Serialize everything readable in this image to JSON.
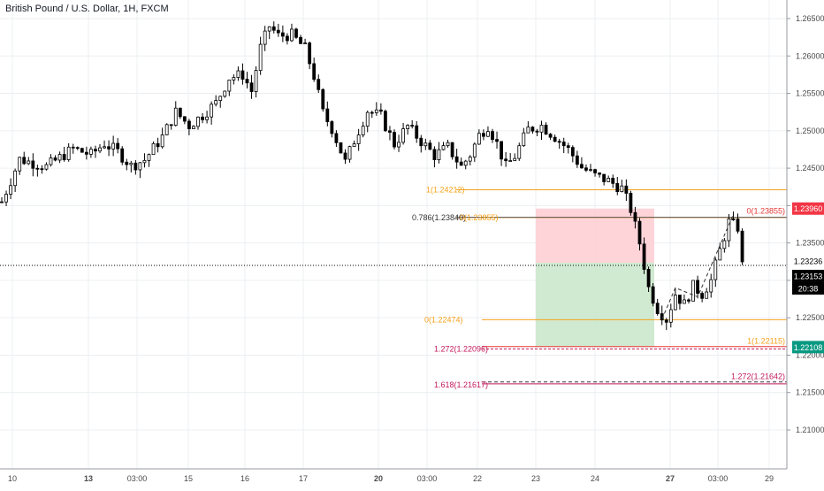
{
  "symbol": {
    "title": "British Pound / U.S. Dollar, 1H, FXCM"
  },
  "colors": {
    "up": "#26a69a",
    "down": "#000000",
    "candle": "#000000",
    "fib_orange": "#f7a21b",
    "fib_red": "#c2185b",
    "target_red": "#e53935",
    "stop_zone": "#ffcdd2",
    "profit_zone": "#c8e6c9",
    "price_badge": "#000000",
    "stop_badge": "#f23645",
    "target_badge": "#089981",
    "grid": "#eceff2",
    "axis_text": "#4a4a4a"
  },
  "axes": {
    "y_ticks": [
      "1.26500",
      "1.26000",
      "1.25500",
      "1.25000",
      "1.24500",
      "1.24000",
      "1.23500",
      "1.23000",
      "1.22500",
      "1.22000",
      "1.21500",
      "1.21000"
    ],
    "x_ticks": [
      "10",
      "13",
      "03:00",
      "15",
      "16",
      "17",
      "20",
      "03:00",
      "22",
      "23",
      "24",
      "27",
      "03:00",
      "29"
    ]
  },
  "badges": {
    "stop": "1.23960",
    "price_a": "1.23236",
    "price_b": "1.23153",
    "countdown": "20:38",
    "target": "1.22108"
  },
  "fib_labels": {
    "top_1": "1(1.24212)",
    "level_0786": "0.786(1.23840)",
    "level_0786_b": "0(1.23855)",
    "level_0_left": "0(1.22474)",
    "level_0_right": "0(1.23855)",
    "level_1_right": "1(1.22115)",
    "level_1272_left": "1.272(1.22096)",
    "level_1618_left": "1.618(1.21617)",
    "level_1272_right": "1.272(1.21642)"
  },
  "chart_data": {
    "type": "candlestick",
    "title": "British Pound / U.S. Dollar, 1H, FXCM",
    "ylim": [
      1.2035,
      1.2695
    ],
    "y_axis_position": "right",
    "grid": true,
    "current_price": 1.23153,
    "close_path": [
      [
        0,
        1.2405
      ],
      [
        4,
        1.2462
      ],
      [
        10,
        1.2452
      ],
      [
        16,
        1.2476
      ],
      [
        20,
        1.2468
      ],
      [
        23,
        1.2483
      ],
      [
        26,
        1.2472
      ],
      [
        29,
        1.2453
      ],
      [
        32,
        1.2461
      ],
      [
        36,
        1.2492
      ],
      [
        39,
        1.2525
      ],
      [
        42,
        1.2507
      ],
      [
        45,
        1.2521
      ],
      [
        48,
        1.2537
      ],
      [
        51,
        1.2571
      ],
      [
        54,
        1.2575
      ],
      [
        56,
        1.2553
      ],
      [
        58,
        1.2611
      ],
      [
        60,
        1.264
      ],
      [
        62,
        1.2627
      ],
      [
        65,
        1.2628
      ],
      [
        68,
        1.261
      ],
      [
        70,
        1.2573
      ],
      [
        72,
        1.2524
      ],
      [
        74,
        1.2503
      ],
      [
        77,
        1.2458
      ],
      [
        79,
        1.2487
      ],
      [
        82,
        1.2527
      ],
      [
        85,
        1.2519
      ],
      [
        88,
        1.2482
      ],
      [
        91,
        1.2506
      ],
      [
        94,
        1.2486
      ],
      [
        97,
        1.2467
      ],
      [
        100,
        1.2478
      ],
      [
        103,
        1.2452
      ],
      [
        105,
        1.2468
      ],
      [
        107,
        1.2494
      ],
      [
        109,
        1.2507
      ],
      [
        111,
        1.2483
      ],
      [
        113,
        1.2452
      ],
      [
        115,
        1.2466
      ],
      [
        118,
        1.2502
      ],
      [
        121,
        1.2507
      ],
      [
        124,
        1.2492
      ],
      [
        127,
        1.2475
      ],
      [
        130,
        1.2451
      ],
      [
        133,
        1.244
      ],
      [
        136,
        1.2433
      ],
      [
        139,
        1.2423
      ],
      [
        141,
        1.2395
      ],
      [
        143,
        1.235
      ],
      [
        145,
        1.229
      ],
      [
        147,
        1.2262
      ],
      [
        149,
        1.2248
      ],
      [
        151,
        1.2282
      ],
      [
        153,
        1.2268
      ],
      [
        155,
        1.2292
      ],
      [
        157,
        1.2282
      ],
      [
        159,
        1.23
      ],
      [
        161,
        1.234
      ],
      [
        163,
        1.2378
      ],
      [
        165,
        1.2371
      ],
      [
        166,
        1.232
      ]
    ],
    "levels": [
      {
        "label": "1(1.24212)",
        "value": 1.24212
      },
      {
        "label": "0.786(1.23840)",
        "value": 1.2384
      },
      {
        "label": "0(1.23855)",
        "value": 1.23855
      },
      {
        "label": "0(1.22474)",
        "value": 1.22474
      },
      {
        "label": "1(1.22115)",
        "value": 1.22115
      },
      {
        "label": "1.272(1.22096)",
        "value": 1.22096
      },
      {
        "label": "1.618(1.21617)",
        "value": 1.21617
      },
      {
        "label": "1.272(1.21642)",
        "value": 1.21642
      }
    ],
    "position": {
      "stop": 1.2396,
      "entry": 1.23236,
      "target": 1.22108
    }
  }
}
